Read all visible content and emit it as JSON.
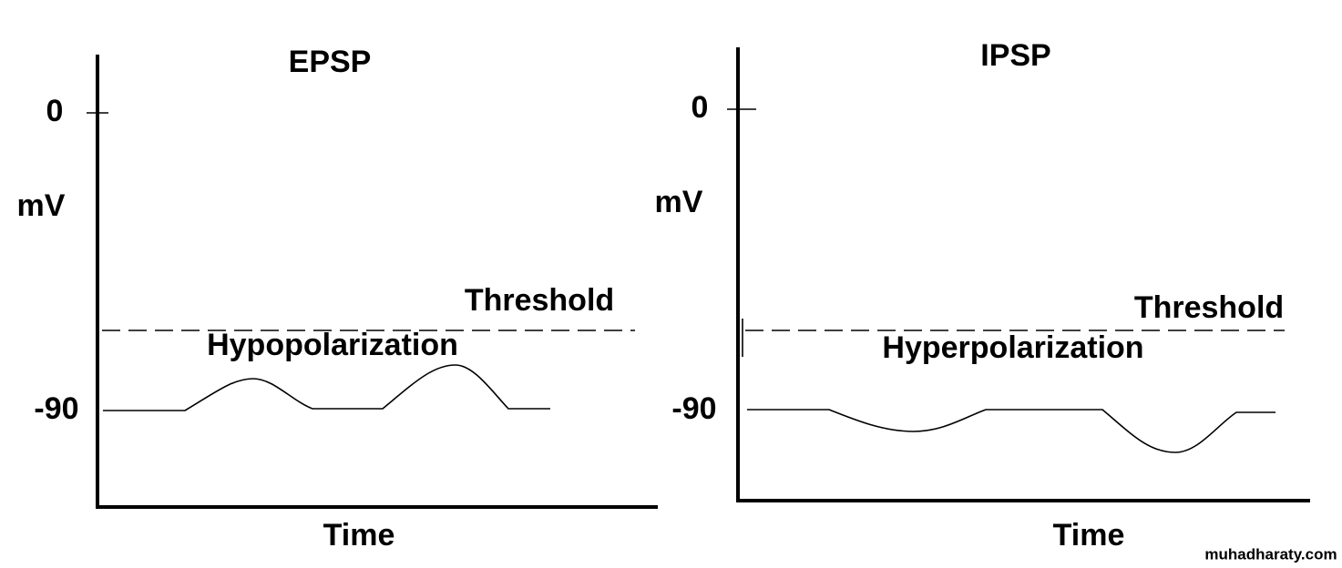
{
  "panels": [
    {
      "title": "EPSP",
      "y_axis_label": "mV",
      "y_top_label": "0",
      "y_bottom_label": "-90",
      "threshold_label": "Threshold",
      "curve_label": "Hypopolarization",
      "x_axis_label": "Time"
    },
    {
      "title": "IPSP",
      "y_axis_label": "mV",
      "y_top_label": "0",
      "y_bottom_label": "-90",
      "threshold_label": "Threshold",
      "curve_label": "Hyperpolarization",
      "x_axis_label": "Time"
    }
  ],
  "footer": {
    "watermark": "muhadharaty.com"
  }
}
